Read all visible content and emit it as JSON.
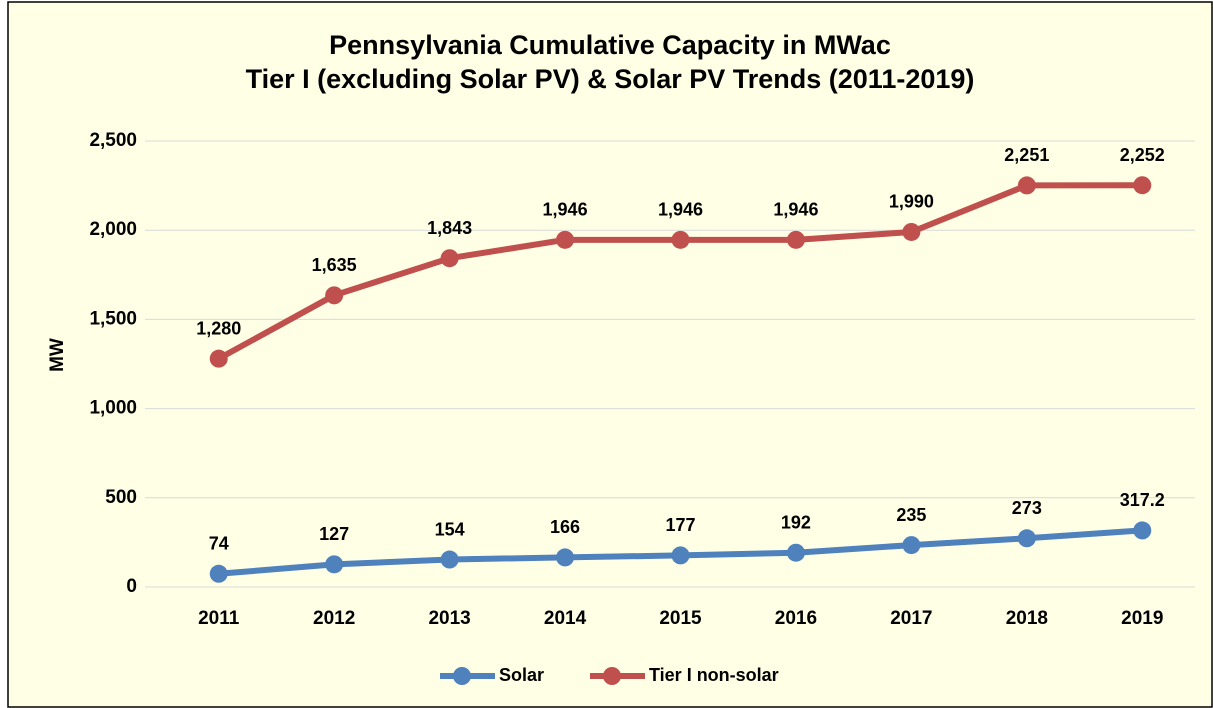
{
  "chart_data": {
    "type": "line",
    "title": "Pennsylvania Cumulative Capacity in MWac",
    "subtitle": "Tier I (excluding Solar PV) & Solar PV Trends (2011-2019)",
    "y_label": "MW",
    "categories": [
      "2011",
      "2012",
      "2013",
      "2014",
      "2015",
      "2016",
      "2017",
      "2018",
      "2019"
    ],
    "series": [
      {
        "name": "Solar",
        "color": "#4f81bd",
        "values": [
          74,
          127,
          154,
          166,
          177,
          192,
          235,
          273,
          317.2
        ]
      },
      {
        "name": "Tier I non-solar",
        "color": "#c0504d",
        "values": [
          1280,
          1635,
          1843,
          1946,
          1946,
          1946,
          1990,
          2251,
          2252
        ],
        "value_labels": [
          "1,280",
          "1,635",
          "1,843",
          "1,946",
          "1,946",
          "1,946",
          "1,990",
          "2,251",
          "2,252"
        ]
      }
    ],
    "ylim": [
      0,
      2500
    ],
    "yticks": [
      0,
      500,
      {
        "value": 1000,
        "label": "1,000"
      },
      {
        "value": 1500,
        "label": "1,500"
      },
      {
        "value": 2000,
        "label": "2,000"
      },
      {
        "value": 2500,
        "label": "2,500"
      }
    ],
    "grid": true,
    "legend": "bottom"
  }
}
